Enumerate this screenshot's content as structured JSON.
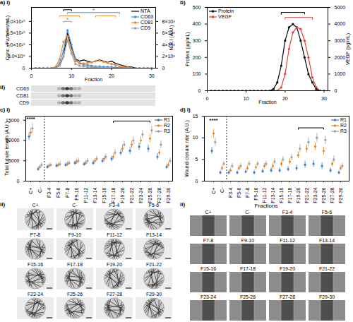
{
  "chart_data": [
    {
      "panel_label": "a) i)",
      "type": "line",
      "xlabel": "Fraction",
      "ylabel": "Conc. (Particles/mL)",
      "y2label": "N.R.I (A.U.)",
      "x": [
        1,
        2,
        3,
        4,
        5,
        6,
        7,
        8,
        9,
        10,
        11,
        12,
        13,
        14,
        15,
        16,
        17,
        18,
        19,
        20,
        21,
        22,
        23,
        24,
        25,
        26,
        27,
        28,
        29,
        30
      ],
      "xlim": [
        0,
        31
      ],
      "xticks": [
        0,
        10,
        20,
        30
      ],
      "ylim": [
        0,
        26000000000
      ],
      "yticks": [
        0,
        {
          "value": 5000000000,
          "label": "5.0×10⁹"
        },
        {
          "value": 10000000000,
          "label": "1.0×10¹⁰"
        },
        {
          "value": 15000000000,
          "label": "1.5×10¹⁰"
        },
        {
          "value": 20000000000,
          "label": "2.0×10¹⁰"
        }
      ],
      "y2lim": [
        0,
        10400
      ],
      "y2ticks": [
        0,
        {
          "value": 2000,
          "label": "2×10³"
        },
        {
          "value": 4000,
          "label": "4×10³"
        },
        {
          "value": 6000,
          "label": "6×10³"
        },
        {
          "value": 8000,
          "label": "8×10³"
        }
      ],
      "legend": "top-right",
      "series": [
        {
          "name": "NTA",
          "color": "#000000",
          "values": [
            0,
            0,
            0,
            0,
            0,
            200000000,
            1000000000,
            5000000000,
            15000000000,
            9000000000,
            4000000000,
            3000000000,
            3500000000,
            3000000000,
            2500000000,
            3000000000,
            3500000000,
            3000000000,
            2500000000,
            3000000000,
            2000000000,
            1500000000,
            1000000000,
            500000000,
            500000000,
            0,
            0,
            0,
            0,
            0
          ]
        },
        {
          "name": "CD63",
          "color": "#4a90d9",
          "axis": "y2",
          "marker": "circle",
          "values": [
            0,
            0,
            0,
            0,
            0,
            100,
            800,
            3000,
            6500,
            4000,
            1500,
            800,
            600,
            500,
            400,
            300,
            300,
            200,
            200,
            200,
            100,
            100,
            100,
            0,
            0,
            0,
            0,
            0,
            0,
            0
          ]
        },
        {
          "name": "CD81",
          "color": "#e8892b",
          "axis": "y2",
          "marker": "circle",
          "values": [
            0,
            0,
            0,
            0,
            0,
            200,
            1500,
            4500,
            5500,
            3000,
            1200,
            900,
            800,
            900,
            1000,
            1200,
            1300,
            1100,
            900,
            700,
            500,
            300,
            200,
            100,
            0,
            0,
            0,
            0,
            0,
            0
          ]
        },
        {
          "name": "CD9",
          "color": "#9e9e9e",
          "axis": "y2",
          "marker": "circle",
          "values": [
            0,
            0,
            0,
            0,
            0,
            0,
            500,
            2000,
            4800,
            2500,
            700,
            400,
            300,
            200,
            200,
            100,
            100,
            0,
            0,
            0,
            0,
            0,
            0,
            0,
            0,
            0,
            0,
            0,
            0,
            0
          ]
        }
      ],
      "brackets": [
        {
          "from": 8,
          "to": 10,
          "y": 25000000000,
          "color": "#000000"
        },
        {
          "from": 9,
          "to": 22,
          "y": 23800000000,
          "color": "#4a90d9",
          "label": "*"
        },
        {
          "from": 7,
          "to": 12,
          "y": 22400000000,
          "color": "#e8892b"
        },
        {
          "from": 16,
          "to": 21,
          "y": 22400000000,
          "color": "#e8892b"
        },
        {
          "from": 8,
          "to": 10,
          "y": 20000000000,
          "color": "#9e9e9e",
          "label": "*"
        }
      ]
    },
    {
      "panel_label": "b)",
      "type": "line",
      "xlabel": "Fraction",
      "ylabel": "Protein (µg/mL)",
      "y2label": "VEGF (pg/mL)",
      "x": [
        1,
        2,
        3,
        4,
        5,
        6,
        7,
        8,
        9,
        10,
        11,
        12,
        13,
        14,
        15,
        16,
        17,
        18,
        19,
        20,
        21,
        22,
        23,
        24,
        25,
        26,
        27,
        28,
        29,
        30
      ],
      "xlim": [
        0,
        31
      ],
      "xticks": [
        0,
        10,
        20,
        30
      ],
      "ylim": [
        0,
        500
      ],
      "yticks": [
        0,
        100,
        200,
        300,
        400,
        500
      ],
      "y2lim": [
        0,
        5000
      ],
      "y2ticks": [
        0,
        1000,
        2000,
        3000,
        4000,
        5000
      ],
      "legend": "top-left",
      "series": [
        {
          "name": "Protein",
          "color": "#000000",
          "marker": "circle",
          "values": [
            0,
            0,
            0,
            0,
            0,
            0,
            0,
            0,
            0,
            0,
            0,
            0,
            0,
            0,
            0,
            0,
            10,
            50,
            150,
            300,
            380,
            400,
            380,
            300,
            200,
            100,
            50,
            10,
            0,
            0
          ]
        },
        {
          "name": "VEGF",
          "color": "#e0403a",
          "axis": "y2",
          "marker": "circle",
          "values": [
            0,
            0,
            0,
            0,
            0,
            0,
            0,
            0,
            0,
            0,
            0,
            0,
            0,
            0,
            0,
            0,
            0,
            0,
            200,
            1000,
            2500,
            3500,
            3800,
            3700,
            3000,
            2000,
            800,
            200,
            0,
            0
          ]
        }
      ],
      "brackets": [
        {
          "from": 19,
          "to": 25,
          "y": 470,
          "color": "#000000"
        },
        {
          "from": 20,
          "to": 27,
          "y": 440,
          "color": "#e0403a"
        }
      ]
    },
    {
      "panel_label": "c) i)",
      "type": "scatter",
      "ylabel": "Total tubule length (A.U.)",
      "categories": [
        "C+",
        "C-",
        "F3-4",
        "F5-6",
        "F7-8",
        "F9-10",
        "F11-12",
        "F13-14",
        "F15-16",
        "F17-18",
        "F19-20",
        "F21-22",
        "F23-24",
        "F25-26",
        "F27-28",
        "F29-30"
      ],
      "ylim": [
        0,
        16000
      ],
      "yticks": [
        0,
        5000,
        10000,
        15000
      ],
      "legend": "top-right",
      "series": [
        {
          "name": "R1",
          "color": "#3a7bd5",
          "marker": "circle",
          "values": [
            11000,
            3000,
            3500,
            3800,
            4000,
            4500,
            4200,
            4500,
            5000,
            5500,
            7000,
            7500,
            8500,
            8000,
            6000,
            3500
          ],
          "errors": [
            900,
            500,
            500,
            500,
            500,
            600,
            500,
            600,
            600,
            700,
            800,
            900,
            900,
            900,
            800,
            600
          ]
        },
        {
          "name": "R2",
          "color": "#e8892b",
          "marker": "circle",
          "values": [
            12000,
            3500,
            3800,
            4000,
            4200,
            4800,
            4500,
            5000,
            5500,
            6000,
            8000,
            9000,
            10000,
            10500,
            7000,
            4000
          ],
          "errors": [
            1000,
            500,
            500,
            500,
            600,
            600,
            600,
            600,
            700,
            700,
            900,
            900,
            1000,
            1000,
            800,
            600
          ]
        },
        {
          "name": "R3",
          "color": "#9e9e9e",
          "marker": "circle",
          "values": [
            13000,
            4000,
            4000,
            4200,
            4500,
            5000,
            5000,
            5500,
            6000,
            7000,
            9000,
            10000,
            11500,
            12500,
            9000,
            5000
          ],
          "errors": [
            1200,
            600,
            500,
            600,
            600,
            700,
            600,
            700,
            700,
            800,
            900,
            1000,
            1000,
            1000,
            900,
            700
          ]
        }
      ],
      "annotations": [
        {
          "text": "****",
          "x": "C+",
          "y": 15300
        }
      ],
      "brackets": [
        {
          "from": "F17-18",
          "to": "F25-26",
          "y": 14800,
          "color": "#000000"
        }
      ]
    },
    {
      "panel_label": "d) i)",
      "type": "scatter",
      "ylabel": "Wound closure rate (A.U.)",
      "categories": [
        "C+",
        "C-",
        "F3-4",
        "F5-6",
        "F7-8",
        "F9-10",
        "F11-12",
        "F13-14",
        "F15-16",
        "F17-18",
        "F19-20",
        "F21-22",
        "F23-24",
        "F25-26",
        "F27-28",
        "F29-30"
      ],
      "ylim": [
        0,
        15
      ],
      "yticks": [
        0,
        5,
        10,
        15
      ],
      "legend": "top-right",
      "series": [
        {
          "name": "R1",
          "color": "#3a7bd5",
          "marker": "circle",
          "values": [
            7,
            2,
            2,
            2,
            2.2,
            2,
            2.3,
            2.5,
            2.5,
            2.8,
            3,
            3.8,
            4,
            3.5,
            2.5,
            2
          ],
          "errors": [
            0.8,
            0.5,
            0.5,
            0.5,
            0.5,
            0.5,
            0.5,
            0.6,
            0.6,
            0.6,
            0.7,
            0.8,
            0.8,
            0.8,
            0.6,
            0.5
          ]
        },
        {
          "name": "R2",
          "color": "#e8892b",
          "marker": "circle",
          "values": [
            11,
            3,
            2.5,
            3,
            3,
            3.2,
            3.5,
            3.5,
            4,
            4.5,
            6,
            7.5,
            8,
            7,
            4,
            3
          ],
          "errors": [
            1,
            0.6,
            0.5,
            0.6,
            0.6,
            0.6,
            0.6,
            0.7,
            0.7,
            0.7,
            0.8,
            0.9,
            0.9,
            0.9,
            0.7,
            0.6
          ]
        },
        {
          "name": "R3",
          "color": "#9e9e9e",
          "marker": "circle",
          "values": [
            9,
            4,
            3.5,
            3.5,
            4,
            4,
            4,
            4.5,
            5,
            5.5,
            7.5,
            9,
            10,
            9.5,
            5,
            3.5
          ],
          "errors": [
            0.9,
            0.6,
            0.6,
            0.6,
            0.6,
            0.6,
            0.6,
            0.7,
            0.7,
            0.7,
            0.9,
            1,
            1,
            1,
            0.8,
            0.6
          ]
        }
      ],
      "annotations": [
        {
          "text": "****",
          "x": "C+",
          "y": 14
        }
      ],
      "brackets": [
        {
          "from": "F19-20",
          "to": "F25-26",
          "y": 12.3,
          "color": "#000000"
        }
      ]
    }
  ],
  "blot": {
    "panel_label": "ii)",
    "rows": [
      "CD63",
      "CD81",
      "CD9"
    ]
  },
  "tube_images": {
    "panel_label": "ii)",
    "labels": [
      "C+",
      "C-",
      "F3-4",
      "F5-6",
      "F7-8",
      "F9-10",
      "F11-12",
      "F13-14",
      "F15-16",
      "F17-18",
      "F19-20",
      "F21-22",
      "F23-24",
      "F25-26",
      "F27-28",
      "F29-30"
    ]
  },
  "wound_images": {
    "panel_label": "ii)",
    "title": "Fractions",
    "labels": [
      "C+",
      "C-",
      "F3-4",
      "F5-6",
      "F7-8",
      "F9-10",
      "F11-12",
      "F13-14",
      "F15-16",
      "F17-18",
      "F19-20",
      "F21-22",
      "F23-24",
      "F25-26",
      "F27-28",
      "F29-30"
    ]
  }
}
